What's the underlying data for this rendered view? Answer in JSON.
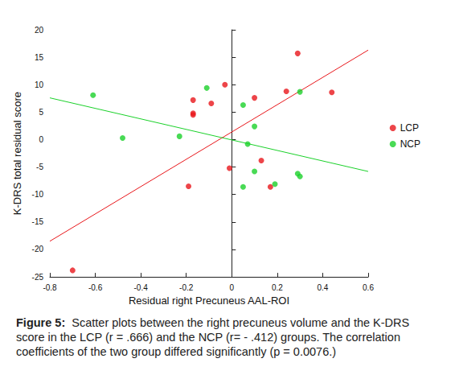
{
  "chart_data": {
    "type": "scatter",
    "x_label": "Residual right Precuneus AAL-ROI",
    "y_label": "K-DRS total residual score",
    "xlim": [
      -0.8,
      0.6
    ],
    "xticks": [
      -0.8,
      -0.6,
      -0.4,
      -0.2,
      0,
      0.2,
      0.4,
      0.6
    ],
    "ylim": [
      -25,
      20
    ],
    "yticks": [
      -25,
      -20,
      -15,
      -10,
      -5,
      0,
      5,
      10,
      15,
      20
    ],
    "grid": false,
    "legend": "right",
    "marker": "circle",
    "series": [
      {
        "name": "LCP",
        "color": "#e8171b",
        "x": [
          -0.7,
          -0.17,
          -0.17,
          -0.17,
          -0.09,
          -0.03,
          0.1,
          0.24,
          0.29,
          0.44,
          -0.01,
          -0.19,
          0.13,
          0.17
        ],
        "values": [
          -23.8,
          7.2,
          4.8,
          4.5,
          6.6,
          10.0,
          7.6,
          8.8,
          15.7,
          8.6,
          -5.2,
          -8.5,
          -3.8,
          -8.6
        ],
        "fit": {
          "x": [
            -0.8,
            0.6
          ],
          "values": [
            -18.5,
            16.3
          ],
          "line_style": "solid"
        }
      },
      {
        "name": "NCP",
        "color": "#1bd12a",
        "x": [
          -0.61,
          -0.48,
          -0.23,
          -0.11,
          0.05,
          0.1,
          0.07,
          0.3,
          0.05,
          0.1,
          0.19,
          0.29,
          0.3
        ],
        "values": [
          8.1,
          0.3,
          0.6,
          9.4,
          6.3,
          2.4,
          -0.8,
          8.7,
          -8.6,
          -5.8,
          -8.1,
          -6.2,
          -6.7
        ],
        "fit": {
          "x": [
            -0.8,
            0.6
          ],
          "values": [
            7.6,
            -5.8
          ],
          "line_style": "solid"
        }
      }
    ]
  },
  "caption": {
    "label": "Figure 5:",
    "text": "Scatter plots between the right precuneus volume and the K-DRS score in the LCP (r = .666) and the NCP (r= - .412) groups. The correlation coefficients of the two group differed significantly (p = 0.0076.)"
  }
}
